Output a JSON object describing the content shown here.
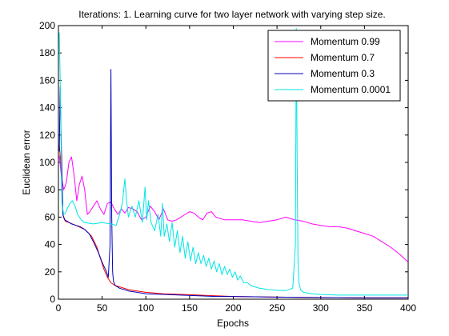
{
  "chart_data": {
    "type": "line",
    "title": "Iterations: 1. Learning curve for two layer network with varying step size.",
    "xlabel": "Epochs",
    "ylabel": "Euclidean error",
    "xlim": [
      0,
      400
    ],
    "ylim": [
      0,
      200
    ],
    "xticks": [
      0,
      50,
      100,
      150,
      200,
      250,
      300,
      350,
      400
    ],
    "yticks": [
      0,
      20,
      40,
      60,
      80,
      100,
      120,
      140,
      160,
      180,
      200
    ],
    "grid": false,
    "legend_position": "top-right",
    "series": [
      {
        "name": "Momentum 0.99",
        "color": "#ff00ff",
        "x": [
          1,
          3,
          6,
          9,
          12,
          15,
          18,
          21,
          24,
          27,
          30,
          33,
          36,
          40,
          44,
          48,
          52,
          56,
          60,
          64,
          68,
          72,
          76,
          80,
          85,
          90,
          95,
          100,
          105,
          110,
          115,
          120,
          125,
          130,
          135,
          140,
          145,
          150,
          155,
          160,
          165,
          170,
          175,
          180,
          190,
          200,
          210,
          220,
          230,
          240,
          250,
          260,
          270,
          280,
          290,
          300,
          310,
          320,
          330,
          340,
          350,
          360,
          370,
          380,
          390,
          400
        ],
        "y": [
          105,
          92,
          80,
          85,
          100,
          104,
          90,
          72,
          84,
          90,
          80,
          62,
          64,
          68,
          72,
          66,
          62,
          70,
          71,
          66,
          62,
          66,
          63,
          67,
          66,
          64,
          58,
          60,
          68,
          64,
          58,
          66,
          58,
          57,
          58,
          60,
          62,
          64,
          63,
          60,
          58,
          63,
          64,
          60,
          58,
          58,
          58,
          57,
          56,
          57,
          58,
          60,
          58,
          57,
          55,
          54,
          53,
          53,
          52,
          50,
          48,
          46,
          42,
          38,
          33,
          27
        ]
      },
      {
        "name": "Momentum 0.7",
        "color": "#ff0000",
        "x": [
          1,
          3,
          5,
          8,
          12,
          20,
          30,
          38,
          44,
          48,
          52,
          56,
          60,
          65,
          70,
          80,
          90,
          100,
          120,
          140,
          160,
          180,
          200,
          250,
          300,
          350,
          400
        ],
        "y": [
          112,
          98,
          62,
          57,
          56,
          54,
          51,
          46,
          38,
          30,
          22,
          16,
          12,
          10,
          9,
          7,
          6,
          5,
          4,
          3.5,
          3,
          2.5,
          2,
          1.5,
          1.2,
          1,
          1
        ]
      },
      {
        "name": "Momentum 0.3",
        "color": "#0000bb",
        "x": [
          1,
          2,
          3,
          4,
          5,
          7,
          10,
          15,
          20,
          25,
          30,
          35,
          40,
          45,
          50,
          55,
          57,
          59,
          60,
          61,
          62,
          63,
          65,
          70,
          80,
          90,
          100,
          120,
          140,
          160,
          180,
          200,
          250,
          300,
          350,
          400
        ],
        "y": [
          108,
          155,
          120,
          95,
          62,
          58,
          57,
          55,
          54,
          53,
          51,
          48,
          42,
          35,
          27,
          20,
          16,
          40,
          168,
          60,
          20,
          13,
          10,
          8,
          6,
          5,
          4,
          3.5,
          3,
          2.5,
          2,
          2,
          1.5,
          1.2,
          1,
          1
        ]
      },
      {
        "name": "Momentum 0.0001",
        "color": "#00e5e5",
        "x": [
          1,
          2,
          3,
          4,
          6,
          8,
          10,
          13,
          16,
          19,
          22,
          26,
          30,
          40,
          50,
          60,
          66,
          70,
          73,
          76,
          78,
          80,
          84,
          88,
          92,
          96,
          99,
          101,
          103,
          106,
          110,
          114,
          117,
          119,
          121,
          124,
          127,
          130,
          133,
          136,
          139,
          142,
          145,
          148,
          151,
          154,
          157,
          160,
          163,
          166,
          169,
          172,
          175,
          178,
          181,
          184,
          187,
          190,
          193,
          196,
          199,
          202,
          205,
          208,
          212,
          216,
          220,
          225,
          230,
          240,
          250,
          260,
          268,
          271,
          272,
          273,
          274,
          275,
          277,
          280,
          290,
          300,
          320,
          340,
          360,
          380,
          400
        ],
        "y": [
          195,
          160,
          112,
          70,
          62,
          63,
          66,
          70,
          72,
          68,
          62,
          58,
          56,
          55,
          56,
          55,
          54,
          62,
          70,
          88,
          72,
          60,
          68,
          60,
          72,
          56,
          82,
          58,
          72,
          56,
          50,
          62,
          46,
          70,
          46,
          55,
          42,
          56,
          38,
          50,
          34,
          46,
          30,
          42,
          28,
          38,
          26,
          34,
          26,
          32,
          24,
          30,
          22,
          28,
          20,
          26,
          18,
          24,
          18,
          22,
          16,
          20,
          14,
          17,
          12,
          12,
          10,
          9,
          8,
          7,
          6.5,
          6.3,
          8,
          40,
          198,
          100,
          30,
          12,
          7,
          5,
          4,
          3.5,
          3,
          3,
          3,
          3,
          3
        ]
      }
    ]
  }
}
